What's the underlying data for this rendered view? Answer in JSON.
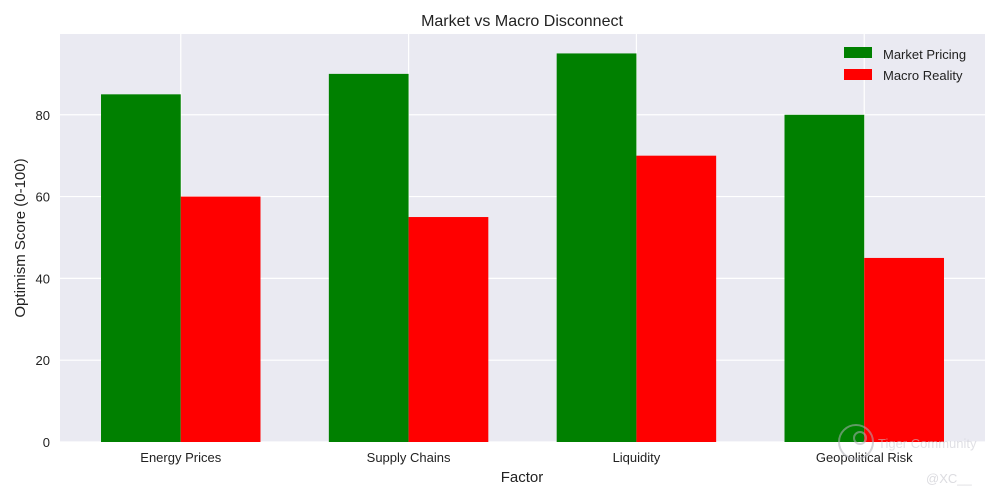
{
  "chart_data": {
    "type": "bar",
    "title": "Market vs Macro Disconnect",
    "xlabel": "Factor",
    "ylabel": "Optimism Score (0-100)",
    "categories": [
      "Energy Prices",
      "Supply Chains",
      "Liquidity",
      "Geopolitical Risk"
    ],
    "series": [
      {
        "name": "Market Pricing",
        "values": [
          85,
          90,
          95,
          80
        ],
        "color": "#008000"
      },
      {
        "name": "Macro Reality",
        "values": [
          60,
          55,
          70,
          45
        ],
        "color": "#ff0000"
      }
    ],
    "ylim": [
      0,
      99.75
    ],
    "yticks": [
      0,
      20,
      40,
      60,
      80
    ],
    "grid": true,
    "legend_position": "top-right",
    "background_color": "#eaeaf2",
    "grid_color": "#ffffff"
  },
  "watermark": {
    "text": "Tiger Community",
    "handle": "@XC__"
  }
}
